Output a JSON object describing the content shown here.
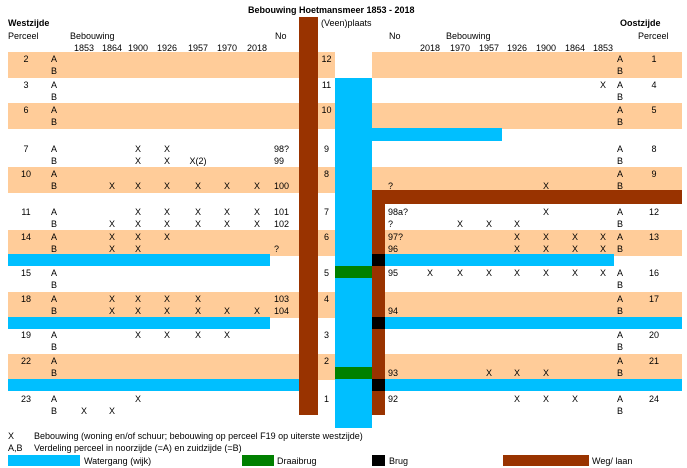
{
  "title": "Bebouwing Hoetmansmeer 1853 - 2018",
  "west": {
    "heading": "Westzijde",
    "perceel_label": "Perceel",
    "bebouwing_label": "Bebouwing",
    "no_label": "No",
    "years": [
      "1853",
      "1864",
      "1900",
      "1926",
      "1957",
      "1970",
      "2018"
    ]
  },
  "center": {
    "label": "(Veen)plaats"
  },
  "east": {
    "heading": "Oostzijde",
    "perceel_label": "Perceel",
    "bebouwing_label": "Bebouwing",
    "no_label": "No",
    "years": [
      "2018",
      "1970",
      "1957",
      "1926",
      "1900",
      "1864",
      "1853"
    ]
  },
  "rows": [
    {
      "wp": "2",
      "ep": "1",
      "plaats": "12",
      "orange": true,
      "a": {
        "wno": "",
        "w": [
          "",
          "",
          "",
          "",
          "",
          "",
          ""
        ],
        "eno": "",
        "e": [
          "",
          "",
          "",
          "",
          "",
          "",
          ""
        ]
      },
      "b": {
        "wno": "",
        "w": [
          "",
          "",
          "",
          "",
          "",
          "",
          ""
        ],
        "eno": "",
        "e": [
          "",
          "",
          "",
          "",
          "",
          "",
          ""
        ]
      }
    },
    {
      "wp": "3",
      "ep": "4",
      "plaats": "11",
      "orange": false,
      "a": {
        "wno": "",
        "w": [
          "",
          "",
          "",
          "",
          "",
          "",
          ""
        ],
        "eno": "",
        "e": [
          "",
          "",
          "",
          "",
          "",
          "",
          "X"
        ]
      },
      "b": {
        "wno": "",
        "w": [
          "",
          "",
          "",
          "",
          "",
          "",
          ""
        ],
        "eno": "",
        "e": [
          "",
          "",
          "",
          "",
          "",
          "",
          ""
        ]
      }
    },
    {
      "wp": "6",
      "ep": "5",
      "plaats": "10",
      "orange": true,
      "a": {
        "wno": "",
        "w": [
          "",
          "",
          "",
          "",
          "",
          "",
          ""
        ],
        "eno": "",
        "e": [
          "",
          "",
          "",
          "",
          "",
          "",
          ""
        ]
      },
      "b": {
        "wno": "",
        "w": [
          "",
          "",
          "",
          "",
          "",
          "",
          ""
        ],
        "eno": "",
        "e": [
          "",
          "",
          "",
          "",
          "",
          "",
          ""
        ]
      }
    },
    {
      "wp": "7",
      "ep": "8",
      "plaats": "9",
      "orange": false,
      "a": {
        "wno": "98?",
        "w": [
          "",
          "",
          "X",
          "X",
          "",
          "",
          ""
        ],
        "eno": "",
        "e": [
          "",
          "",
          "",
          "",
          "",
          "",
          ""
        ]
      },
      "b": {
        "wno": "99",
        "w": [
          "",
          "",
          "X",
          "X",
          "X(2)",
          "",
          ""
        ],
        "eno": "",
        "e": [
          "",
          "",
          "",
          "",
          "",
          "",
          ""
        ]
      }
    },
    {
      "wp": "10",
      "ep": "9",
      "plaats": "8",
      "orange": true,
      "a": {
        "wno": "",
        "w": [
          "",
          "",
          "",
          "",
          "",
          "",
          ""
        ],
        "eno": "",
        "e": [
          "",
          "",
          "",
          "",
          "",
          "",
          ""
        ]
      },
      "b": {
        "wno": "100",
        "w": [
          "",
          "X",
          "X",
          "X",
          "X",
          "X",
          "X"
        ],
        "eno": "?",
        "e": [
          "",
          "",
          "",
          "",
          "X",
          "",
          ""
        ]
      }
    },
    {
      "wp": "11",
      "ep": "12",
      "plaats": "7",
      "orange": false,
      "a": {
        "wno": "101",
        "w": [
          "",
          "",
          "X",
          "X",
          "X",
          "X",
          "X"
        ],
        "eno": "98a?",
        "e": [
          "",
          "",
          "",
          "",
          "X",
          "",
          ""
        ]
      },
      "b": {
        "wno": "102",
        "w": [
          "",
          "X",
          "X",
          "X",
          "X",
          "X",
          "X"
        ],
        "eno": "?",
        "e": [
          "",
          "X",
          "X",
          "X",
          "",
          "",
          ""
        ]
      }
    },
    {
      "wp": "14",
      "ep": "13",
      "plaats": "6",
      "orange": true,
      "a": {
        "wno": "",
        "w": [
          "",
          "X",
          "X",
          "X",
          "",
          "",
          ""
        ],
        "eno": "97?",
        "e": [
          "",
          "",
          "",
          "X",
          "X",
          "X",
          "X"
        ]
      },
      "b": {
        "wno": "?",
        "w": [
          "",
          "X",
          "X",
          "",
          "",
          "",
          ""
        ],
        "eno": "96",
        "e": [
          "",
          "",
          "",
          "X",
          "X",
          "X",
          "X"
        ]
      }
    },
    {
      "wp": "15",
      "ep": "16",
      "plaats": "5",
      "orange": false,
      "a": {
        "wno": "",
        "w": [
          "",
          "",
          "",
          "",
          "",
          "",
          ""
        ],
        "eno": "95",
        "e": [
          "X",
          "X",
          "X",
          "X",
          "X",
          "X",
          "X"
        ]
      },
      "b": {
        "wno": "",
        "w": [
          "",
          "",
          "",
          "",
          "",
          "",
          ""
        ],
        "eno": "",
        "e": [
          "",
          "",
          "",
          "",
          "",
          "",
          ""
        ]
      }
    },
    {
      "wp": "18",
      "ep": "17",
      "plaats": "4",
      "orange": true,
      "a": {
        "wno": "103",
        "w": [
          "",
          "X",
          "X",
          "X",
          "X",
          "",
          ""
        ],
        "eno": "",
        "e": [
          "",
          "",
          "",
          "",
          "",
          "",
          ""
        ]
      },
      "b": {
        "wno": "104",
        "w": [
          "",
          "X",
          "X",
          "X",
          "X",
          "X",
          "X"
        ],
        "eno": "94",
        "e": [
          "",
          "",
          "",
          "",
          "",
          "",
          ""
        ]
      }
    },
    {
      "wp": "19",
      "ep": "20",
      "plaats": "3",
      "orange": false,
      "a": {
        "wno": "",
        "w": [
          "",
          "",
          "X",
          "X",
          "X",
          "X",
          ""
        ],
        "eno": "",
        "e": [
          "",
          "",
          "",
          "",
          "",
          "",
          ""
        ]
      },
      "b": {
        "wno": "",
        "w": [
          "",
          "",
          "",
          "",
          "",
          "",
          ""
        ],
        "eno": "",
        "e": [
          "",
          "",
          "",
          "",
          "",
          "",
          ""
        ]
      }
    },
    {
      "wp": "22",
      "ep": "21",
      "plaats": "2",
      "orange": true,
      "a": {
        "wno": "",
        "w": [
          "",
          "",
          "",
          "",
          "",
          "",
          ""
        ],
        "eno": "",
        "e": [
          "",
          "",
          "",
          "",
          "",
          "",
          ""
        ]
      },
      "b": {
        "wno": "",
        "w": [
          "",
          "",
          "",
          "",
          "",
          "",
          ""
        ],
        "eno": "93",
        "e": [
          "",
          "",
          "X",
          "X",
          "X",
          "",
          ""
        ]
      }
    },
    {
      "wp": "23",
      "ep": "24",
      "plaats": "1",
      "orange": false,
      "a": {
        "wno": "",
        "w": [
          "",
          "",
          "X",
          "",
          "",
          "",
          ""
        ],
        "eno": "92",
        "e": [
          "",
          "",
          "",
          "X",
          "X",
          "X",
          ""
        ]
      },
      "b": {
        "wno": "",
        "w": [
          "X",
          "X",
          "",
          "",
          "",
          "",
          ""
        ],
        "eno": "",
        "e": [
          "",
          "",
          "",
          "",
          "",
          "",
          ""
        ]
      }
    }
  ],
  "legend": {
    "x_sym": "X",
    "x_text": "Bebouwing (woning en/of schuur; bebouwing op perceel F19 op uiterste westzijde)",
    "ab_sym": "A,B",
    "ab_text": "Verdeling perceel in noorzijde (=A) en zuidzijde (=B)",
    "items": [
      {
        "key": "watergang",
        "label": "Watergang (wijk)",
        "color": "#00bfff"
      },
      {
        "key": "draaibrug",
        "label": "Draaibrug",
        "color": "#008000"
      },
      {
        "key": "brug",
        "label": "Brug",
        "color": "#000000"
      },
      {
        "key": "weg",
        "label": "Weg/ laan",
        "color": "#993300"
      }
    ]
  },
  "colors": {
    "orange": "#ffcc99",
    "water": "#00bfff",
    "road": "#993300",
    "bridge": "#000000",
    "swing": "#008000"
  }
}
